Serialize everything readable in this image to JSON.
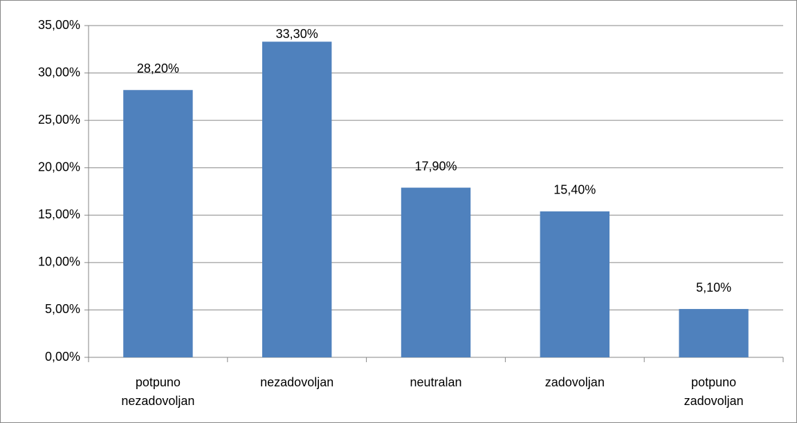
{
  "chart_data": {
    "type": "bar",
    "categories": [
      "potpuno nezadovoljan",
      "nezadovoljan",
      "neutralan",
      "zadovoljan",
      "potpuno zadovoljan"
    ],
    "values": [
      28.2,
      33.3,
      17.9,
      15.4,
      5.1
    ],
    "value_labels": [
      "28,20%",
      "33,30%",
      "17,90%",
      "15,40%",
      "5,10%"
    ],
    "color": "#4f81bd",
    "ylim": [
      0,
      35
    ],
    "yticks": [
      {
        "value": 0,
        "label": "0,00%"
      },
      {
        "value": 5,
        "label": "5,00%"
      },
      {
        "value": 10,
        "label": "10,00%"
      },
      {
        "value": 15,
        "label": "15,00%"
      },
      {
        "value": 20,
        "label": "20,00%"
      },
      {
        "value": 25,
        "label": "25,00%"
      },
      {
        "value": 30,
        "label": "30,00%"
      },
      {
        "value": 35,
        "label": "35,00%"
      }
    ],
    "grid": true
  }
}
